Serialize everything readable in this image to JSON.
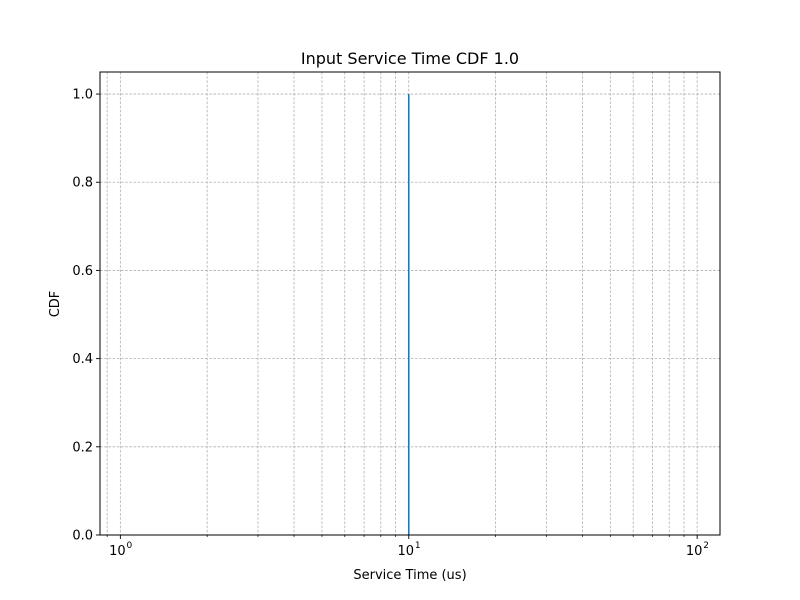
{
  "chart_data": {
    "type": "line",
    "title": "Input Service Time CDF 1.0",
    "xlabel": "Service Time (us)",
    "ylabel": "CDF",
    "x_scale": "log",
    "xlim": [
      0.85,
      120
    ],
    "ylim": [
      0,
      1.05
    ],
    "x_ticks": [
      {
        "value": 1,
        "base": "10",
        "exp": "0"
      },
      {
        "value": 10,
        "base": "10",
        "exp": "1"
      },
      {
        "value": 100,
        "base": "10",
        "exp": "2"
      }
    ],
    "y_ticks": [
      {
        "value": 0.0,
        "label": "0.0"
      },
      {
        "value": 0.2,
        "label": "0.2"
      },
      {
        "value": 0.4,
        "label": "0.4"
      },
      {
        "value": 0.6,
        "label": "0.6"
      },
      {
        "value": 0.8,
        "label": "0.8"
      },
      {
        "value": 1.0,
        "label": "1.0"
      }
    ],
    "grid": true,
    "series": [
      {
        "color": "#1f77b4",
        "x": [
          10,
          10
        ],
        "y": [
          0.0,
          1.0
        ]
      }
    ]
  }
}
